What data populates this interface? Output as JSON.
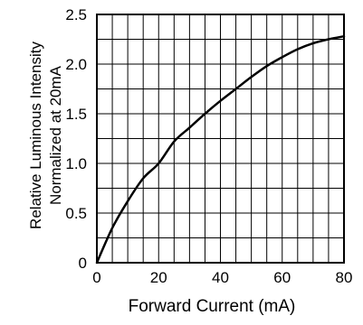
{
  "chart_data": {
    "type": "line",
    "title": "",
    "xlabel": "Forward Current (mA)",
    "ylabel_lines": [
      "Relative Luminous Intensity",
      "Normalized at 20mA"
    ],
    "xlim": [
      0,
      80
    ],
    "ylim": [
      0,
      2.5
    ],
    "x_ticks": [
      0,
      20,
      40,
      60,
      80
    ],
    "x_tick_labels": [
      "0",
      "20",
      "40",
      "60",
      "80"
    ],
    "y_ticks": [
      0,
      0.5,
      1.0,
      1.5,
      2.0,
      2.5
    ],
    "y_tick_labels": [
      "0",
      "0.5",
      "1.0",
      "1.5",
      "2.0",
      "2.5"
    ],
    "grid": true,
    "series": [
      {
        "x": [
          0,
          5,
          10,
          15,
          20,
          25,
          30,
          35,
          40,
          45,
          50,
          55,
          60,
          65,
          70,
          75,
          80
        ],
        "y": [
          0,
          0.35,
          0.62,
          0.85,
          1.0,
          1.22,
          1.36,
          1.5,
          1.63,
          1.75,
          1.87,
          1.98,
          2.07,
          2.15,
          2.21,
          2.25,
          2.28
        ]
      }
    ],
    "colors": {
      "line": "#000000",
      "grid": "#000000",
      "background": "#ffffff"
    }
  }
}
